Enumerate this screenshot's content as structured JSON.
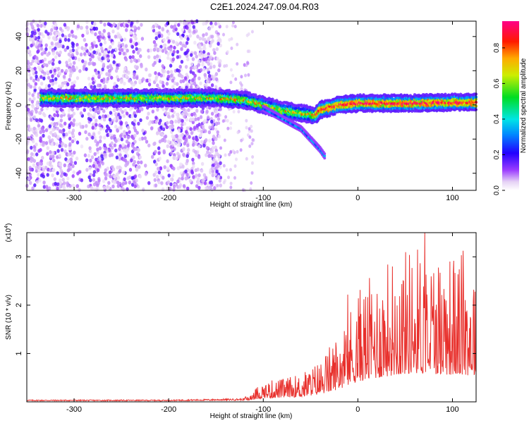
{
  "title": "C2E1.2024.247.09.04.R03",
  "chart_data": [
    {
      "type": "heatmap",
      "xlabel": "Height of straight line (km)",
      "ylabel": "Frequency (Hz)",
      "xlim": [
        -350,
        125
      ],
      "ylim": [
        -50,
        49
      ],
      "xticks": [
        -300,
        -200,
        -100,
        0,
        100
      ],
      "yticks": [
        -40,
        -20,
        0,
        20,
        40
      ],
      "colorbar": {
        "label": "Normalized spectral amplitude",
        "range": [
          0,
          0.95
        ],
        "ticks": [
          0.0,
          0.2,
          0.4,
          0.6,
          0.8
        ]
      },
      "ridge": {
        "x": [
          -335,
          -300,
          -250,
          -200,
          -150,
          -120,
          -100,
          -80,
          -60,
          -45,
          -40,
          -20,
          0,
          50,
          100,
          125
        ],
        "y": [
          4,
          4,
          4,
          4,
          4,
          3,
          0,
          -3,
          -5,
          -6,
          -3,
          0,
          1,
          1,
          1.5,
          1.5
        ]
      },
      "branch": {
        "x": [
          -100,
          -80,
          -60,
          -50,
          -40,
          -35
        ],
        "y": [
          -2,
          -8,
          -14,
          -20,
          -26,
          -30
        ]
      }
    },
    {
      "type": "line",
      "xlabel": "Height of straight line (km)",
      "ylabel": "SNR (10 * v/v)",
      "scale_label_base": "(x10",
      "scale_label_exp": "4",
      "scale_label_end": ")",
      "xlim": [
        -350,
        125
      ],
      "ylim": [
        0,
        3.5
      ],
      "xticks": [
        -300,
        -200,
        -100,
        0,
        100
      ],
      "yticks": [
        1,
        2,
        3
      ],
      "series": [
        {
          "color": "#e8302c",
          "envelope": {
            "x": [
              -350,
              -200,
              -120,
              -100,
              -80,
              -60,
              -40,
              -20,
              0,
              20,
              40,
              60,
              80,
              100,
              125
            ],
            "y": [
              0.03,
              0.03,
              0.05,
              0.22,
              0.25,
              0.3,
              0.45,
              0.75,
              1.2,
              1.4,
              1.6,
              1.7,
              1.65,
              1.6,
              1.55
            ]
          }
        }
      ]
    }
  ]
}
